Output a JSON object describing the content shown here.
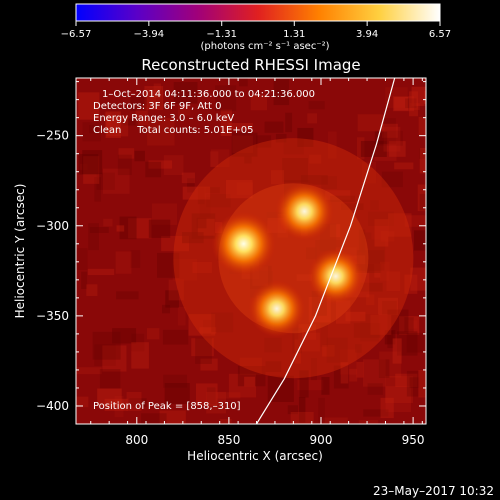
{
  "chart_data": {
    "type": "heatmap",
    "title": "Reconstructed RHESSI Image",
    "xlabel": "Heliocentric X (arcsec)",
    "ylabel": "Heliocentric Y (arcsec)",
    "xlim": [
      767,
      957
    ],
    "ylim": [
      -410,
      -218
    ],
    "x_ticks": [
      800,
      850,
      900,
      950
    ],
    "y_ticks": [
      -400,
      -350,
      -300,
      -250
    ],
    "x_tick_labels": [
      "800",
      "850",
      "900",
      "950"
    ],
    "y_tick_labels": [
      "−400",
      "−350",
      "−300",
      "−250"
    ],
    "colorbar": {
      "range": [
        -6.57,
        6.57
      ],
      "tick_values": [
        -6.57,
        -3.94,
        -1.31,
        1.31,
        3.94,
        6.57
      ],
      "tick_labels": [
        "−6.57",
        "−3.94",
        "−1.31",
        "1.31",
        "3.94",
        "6.57"
      ],
      "unit_label": "(photons cm⁻² s⁻¹ asec⁻²)",
      "colors": [
        "#0000ff",
        "#5a00c8",
        "#a0007a",
        "#e02020",
        "#ff8000",
        "#ffd040",
        "#ffffff"
      ]
    },
    "annotations": [
      "1–Oct–2014 04:11:36.000 to 04:21:36.000",
      "Detectors: 3F 6F 9F, Att 0",
      "Energy Range: 3.0 – 6.0 keV",
      "Clean     Total counts: 5.01E+05"
    ],
    "peak_label": "Position of Peak = [858,–310]",
    "sources": [
      {
        "x": 858,
        "y": -310,
        "intensity": 1.0
      },
      {
        "x": 891,
        "y": -292,
        "intensity": 0.85
      },
      {
        "x": 908,
        "y": -328,
        "intensity": 0.78
      },
      {
        "x": 876,
        "y": -346,
        "intensity": 0.8
      }
    ],
    "limb_curve": [
      [
        940,
        -218
      ],
      [
        930,
        -255
      ],
      [
        916,
        -300
      ],
      [
        897,
        -350
      ],
      [
        880,
        -385
      ],
      [
        865,
        -410
      ]
    ],
    "background_color": "#8a0808",
    "footer_date": "23–May–2017 10:32"
  }
}
